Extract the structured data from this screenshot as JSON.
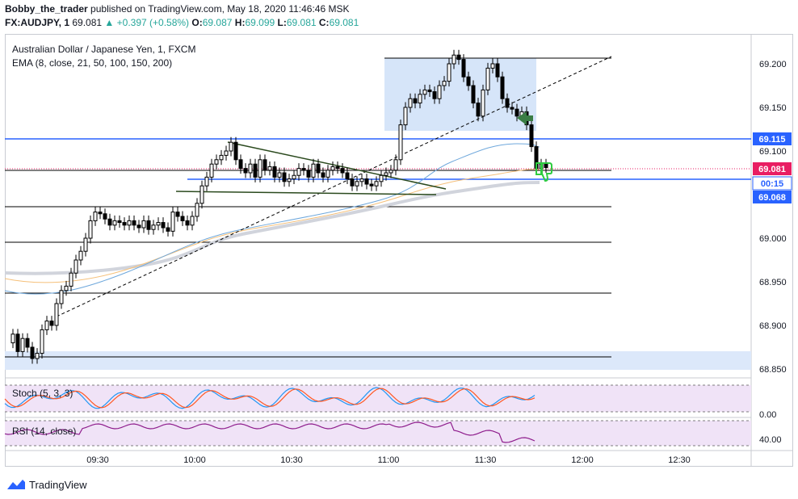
{
  "header": {
    "author": "Bobby_the_trader",
    "published_text": "published on TradingView.com, May 18, 2020 11:46:46 MSK",
    "symbol": "FX:AUDJPY, 1",
    "last": "69.081",
    "change": "+0.397 (+0.58%)",
    "o_label": "O:",
    "o": "69.087",
    "h_label": "H:",
    "h": "69.099",
    "l_label": "L:",
    "l": "69.081",
    "c_label": "C:",
    "c": "69.081",
    "up_color": "#26a69a"
  },
  "legend": {
    "title": "Australian Dollar / Japanese Yen, 1, FXCM",
    "ema": "EMA (8, close, 21, 50, 100, 150, 200)",
    "stoch": "Stoch (5, 3, 3)",
    "rsi": "RSI (14, close)"
  },
  "badges": {
    "level_high": "69.115",
    "price": "69.081",
    "countdown": "00:15",
    "level_low": "69.068",
    "blue": "#2962ff",
    "pink": "#e91e63"
  },
  "footer": {
    "brand": "TradingView",
    "icon": "tradingview-logo-icon"
  },
  "chart_data": {
    "type": "candlestick",
    "x_ticks": [
      "09:30",
      "10:00",
      "10:30",
      "11:00",
      "11:30",
      "12:00",
      "12:30"
    ],
    "y_ticks": [
      "69.200",
      "69.150",
      "69.100",
      "69.050",
      "69.000",
      "68.950",
      "68.900",
      "68.850"
    ],
    "ylim": [
      68.835,
      69.245
    ],
    "price_levels": [
      69.115,
      69.076,
      69.068
    ],
    "stoch_ticks": [
      "0.00"
    ],
    "rsi_ticks": [
      "40.00"
    ],
    "ohlc_points": [
      [
        0,
        68.88
      ],
      [
        6,
        68.89
      ],
      [
        12,
        68.87
      ],
      [
        18,
        68.885
      ],
      [
        24,
        68.875
      ],
      [
        30,
        68.862
      ],
      [
        36,
        68.868
      ],
      [
        42,
        68.895
      ],
      [
        48,
        68.905
      ],
      [
        54,
        68.9
      ],
      [
        60,
        68.925
      ],
      [
        66,
        68.94
      ],
      [
        72,
        68.945
      ],
      [
        78,
        68.96
      ],
      [
        84,
        68.975
      ],
      [
        90,
        68.985
      ],
      [
        96,
        69.0
      ],
      [
        102,
        69.02
      ],
      [
        108,
        69.03
      ],
      [
        114,
        69.028
      ],
      [
        120,
        69.022
      ],
      [
        126,
        69.015
      ],
      [
        132,
        69.02
      ],
      [
        138,
        69.018
      ],
      [
        144,
        69.015
      ],
      [
        150,
        69.02
      ],
      [
        156,
        69.015
      ],
      [
        162,
        69.012
      ],
      [
        168,
        69.02
      ],
      [
        174,
        69.01
      ],
      [
        180,
        69.015
      ],
      [
        186,
        69.018
      ],
      [
        192,
        69.012
      ],
      [
        198,
        69.008
      ],
      [
        204,
        69.03
      ],
      [
        210,
        69.025
      ],
      [
        216,
        69.02
      ],
      [
        222,
        69.015
      ],
      [
        228,
        69.025
      ],
      [
        234,
        69.04
      ],
      [
        240,
        69.06
      ],
      [
        246,
        69.07
      ],
      [
        252,
        69.085
      ],
      [
        258,
        69.09
      ],
      [
        264,
        69.095
      ],
      [
        270,
        69.1
      ],
      [
        276,
        69.11
      ],
      [
        282,
        69.09
      ],
      [
        288,
        69.08
      ],
      [
        294,
        69.075
      ],
      [
        300,
        69.085
      ],
      [
        306,
        69.07
      ],
      [
        312,
        69.09
      ],
      [
        318,
        69.078
      ],
      [
        324,
        69.082
      ],
      [
        330,
        69.07
      ],
      [
        336,
        69.075
      ],
      [
        342,
        69.065
      ],
      [
        348,
        69.068
      ],
      [
        354,
        69.072
      ],
      [
        360,
        69.08
      ],
      [
        366,
        69.078
      ],
      [
        372,
        69.07
      ],
      [
        378,
        69.085
      ],
      [
        384,
        69.075
      ],
      [
        390,
        69.07
      ],
      [
        396,
        69.078
      ],
      [
        402,
        69.082
      ],
      [
        408,
        69.08
      ],
      [
        414,
        69.075
      ],
      [
        420,
        69.068
      ],
      [
        426,
        69.06
      ],
      [
        432,
        69.065
      ],
      [
        438,
        69.068
      ],
      [
        444,
        69.062
      ],
      [
        450,
        69.06
      ],
      [
        456,
        69.065
      ],
      [
        462,
        69.072
      ],
      [
        468,
        69.075
      ],
      [
        474,
        69.078
      ],
      [
        480,
        69.09
      ],
      [
        486,
        69.13
      ],
      [
        492,
        69.15
      ],
      [
        498,
        69.16
      ],
      [
        504,
        69.155
      ],
      [
        510,
        69.165
      ],
      [
        516,
        69.17
      ],
      [
        522,
        69.168
      ],
      [
        528,
        69.16
      ],
      [
        534,
        69.175
      ],
      [
        540,
        69.18
      ],
      [
        546,
        69.2
      ],
      [
        552,
        69.21
      ],
      [
        558,
        69.205
      ],
      [
        564,
        69.185
      ],
      [
        570,
        69.175
      ],
      [
        576,
        69.155
      ],
      [
        582,
        69.14
      ],
      [
        588,
        69.17
      ],
      [
        594,
        69.195
      ],
      [
        600,
        69.2
      ],
      [
        606,
        69.185
      ],
      [
        612,
        69.16
      ],
      [
        618,
        69.15
      ],
      [
        624,
        69.148
      ],
      [
        630,
        69.14
      ],
      [
        636,
        69.145
      ],
      [
        642,
        69.13
      ],
      [
        648,
        69.105
      ],
      [
        654,
        69.08
      ],
      [
        660,
        69.085
      ],
      [
        666,
        69.081
      ]
    ]
  }
}
